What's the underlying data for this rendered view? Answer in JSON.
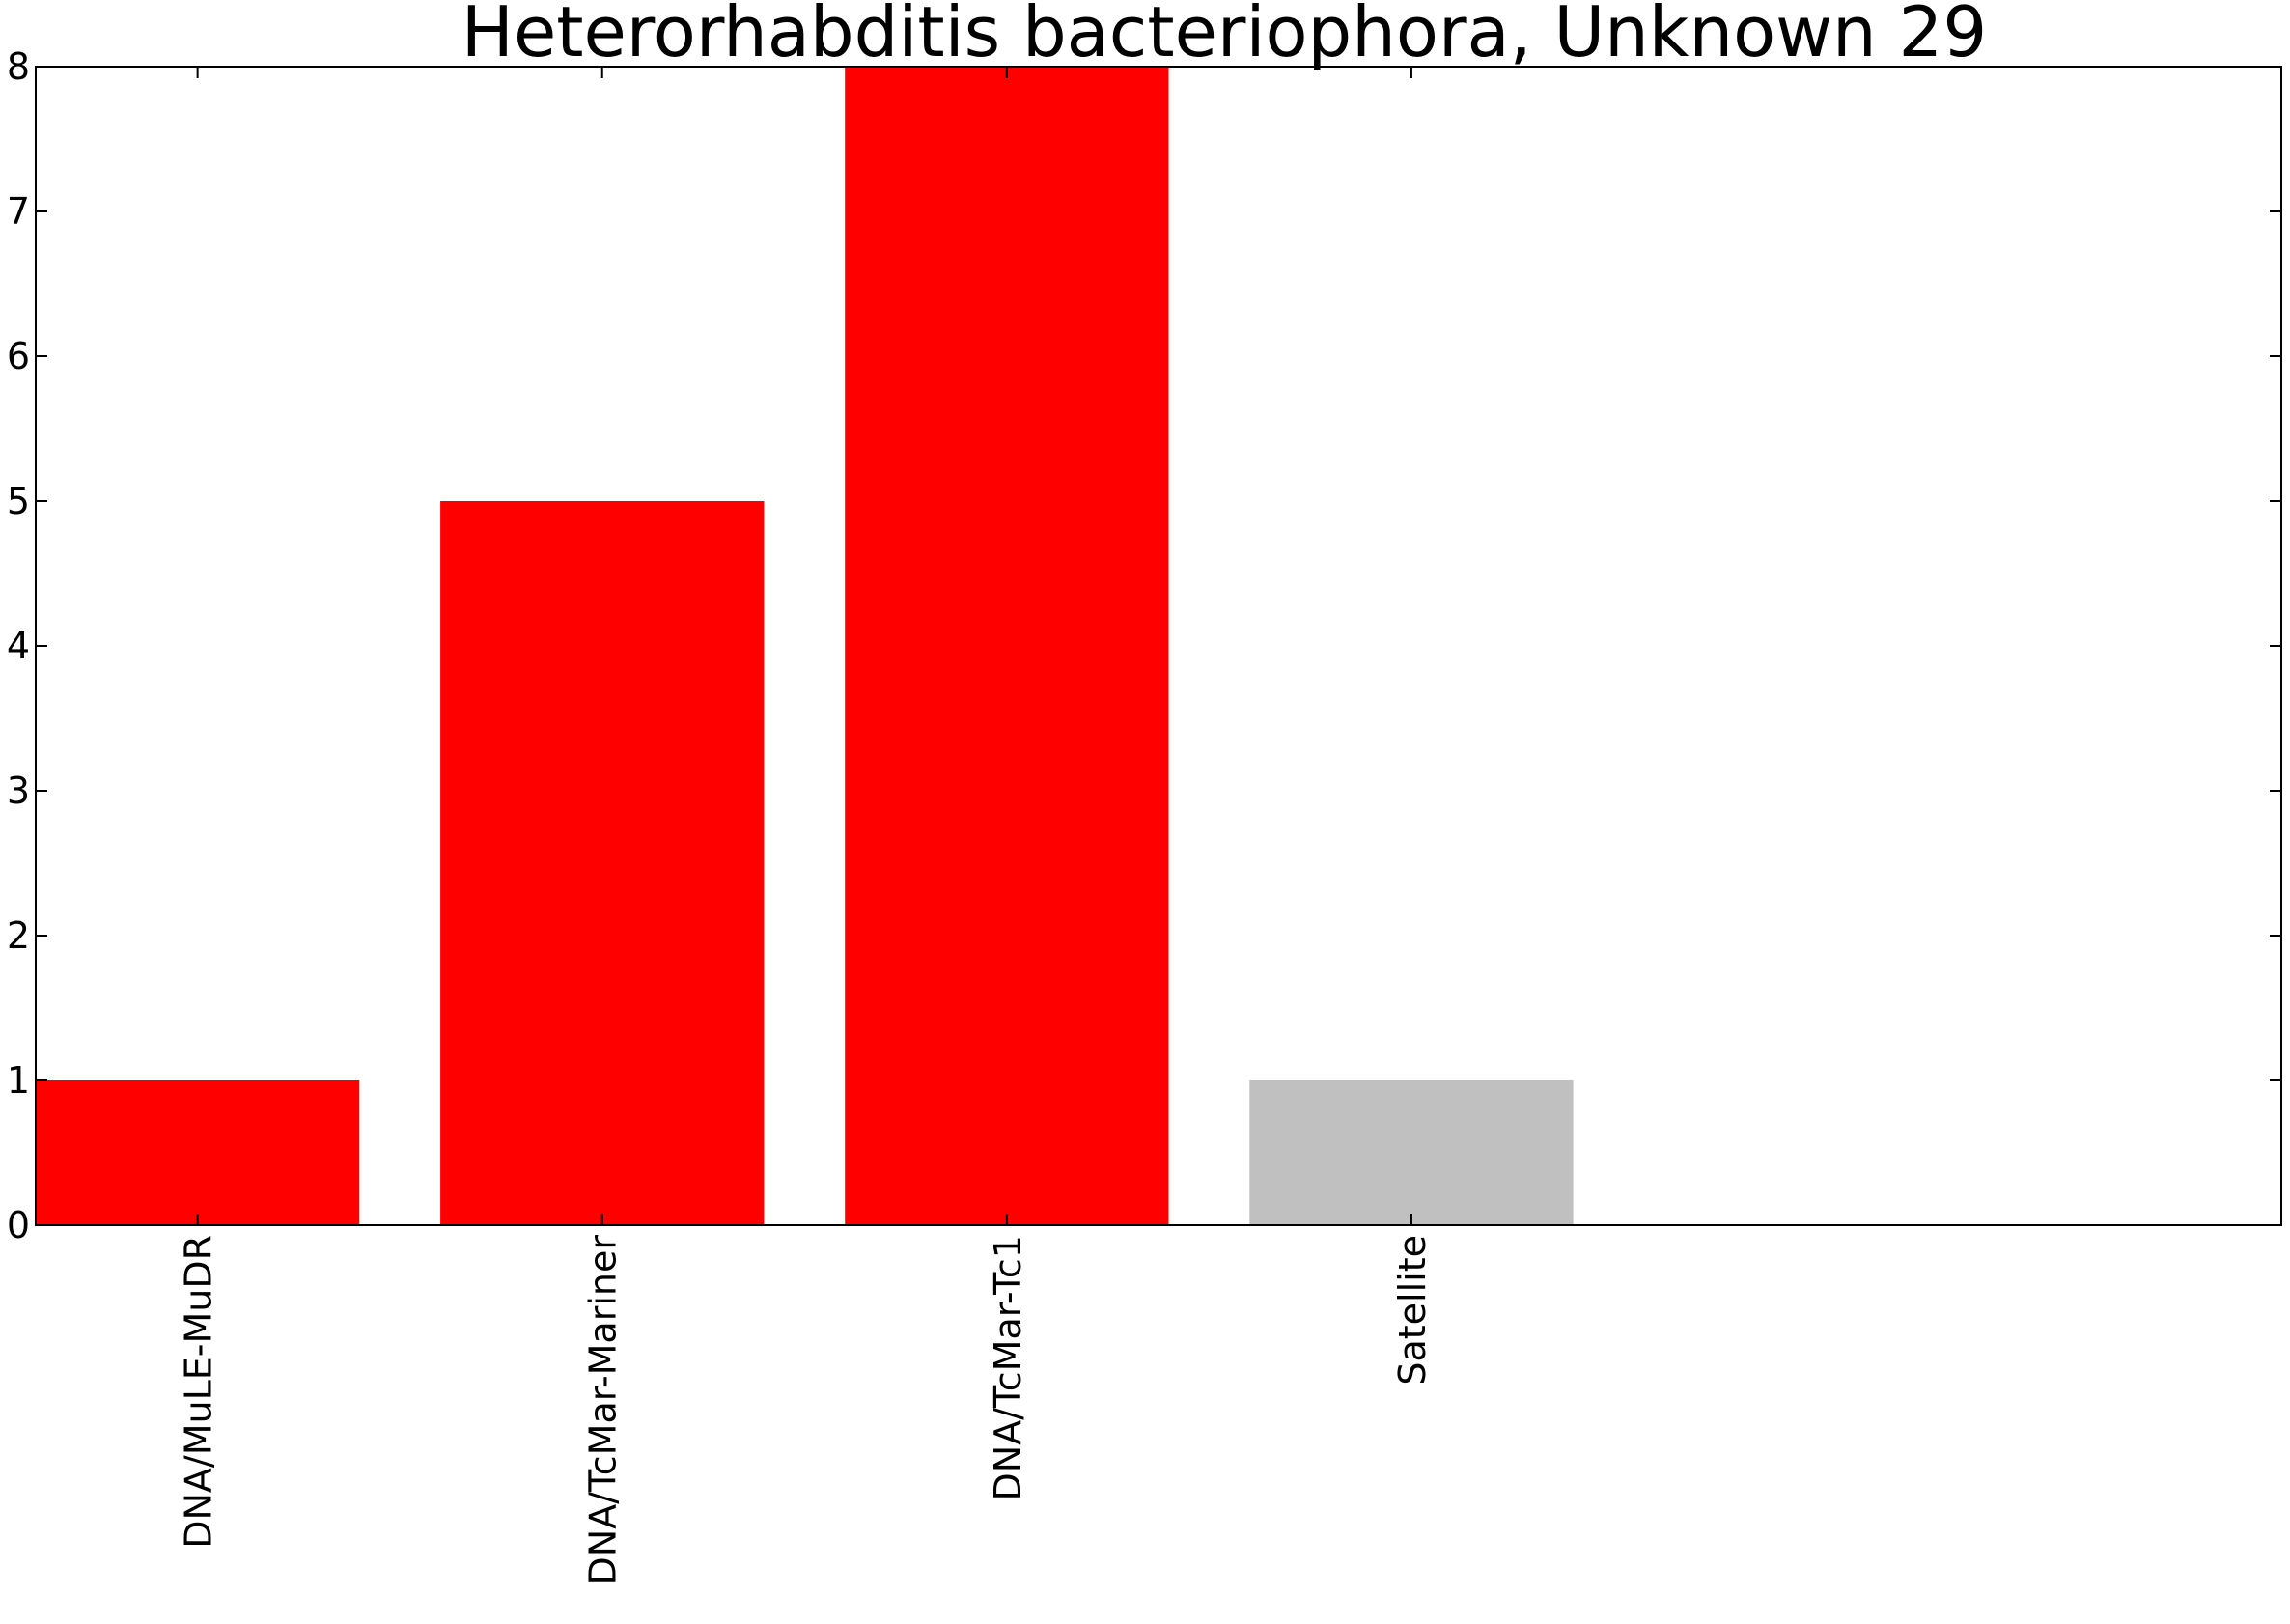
{
  "chart_data": {
    "type": "bar",
    "title": "Heterorhabditis bacteriophora, Unknown 29",
    "xlabel": "",
    "ylabel": "",
    "categories": [
      "DNA/MuLE-MuDR",
      "DNA/TcMar-Mariner",
      "DNA/TcMar-Tc1",
      "Satellite"
    ],
    "values": [
      1,
      5,
      8,
      1
    ],
    "bar_colors": [
      "#ff0000",
      "#ff0000",
      "#ff0000",
      "#c0c0c0"
    ],
    "ylim": [
      0,
      8
    ],
    "xlim": [
      0,
      5.55
    ],
    "yticks": [
      "0",
      "1",
      "2",
      "3",
      "4",
      "5",
      "6",
      "7",
      "8"
    ],
    "grid": false,
    "legend": "none"
  }
}
